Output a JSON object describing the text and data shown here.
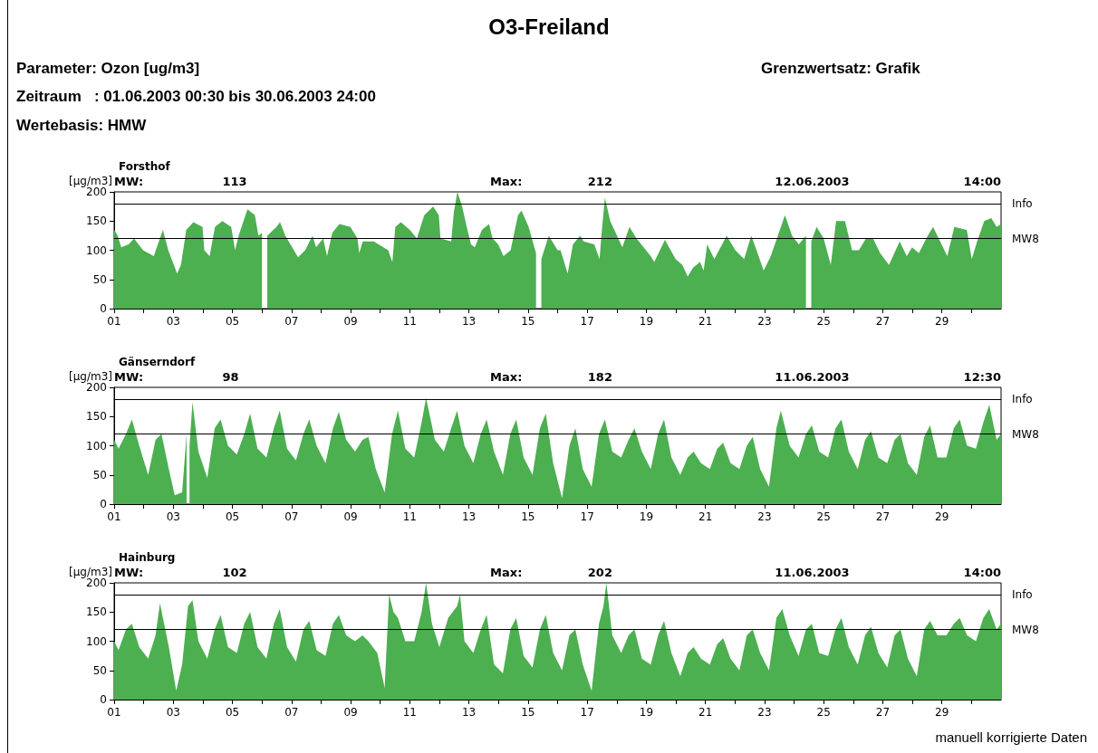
{
  "chart_data": [
    {
      "type": "other",
      "title": "O3-Freiland",
      "annotations": [
        "Parameter: Ozon [ug/m3]",
        "Zeitraum   : 01.06.2003 00:30 bis 30.06.2003 24:00",
        "Wertebasis: HMW",
        "Grenzwertsatz: Grafik",
        "manuell korrigierte Daten"
      ]
    },
    {
      "type": "area",
      "title": "Forsthof",
      "ylabel": "[µg/m3]",
      "annotations": [
        "MW:",
        "113",
        "Max:",
        "212",
        "12.06.2003",
        "14:00"
      ],
      "xlim": [
        1,
        31
      ],
      "ylim": [
        0,
        200
      ],
      "yticks": [
        0,
        50,
        100,
        150,
        200
      ],
      "xticks": [
        {
          "value": 1,
          "label": "01"
        },
        {
          "value": 2,
          "label": null
        },
        {
          "value": 3,
          "label": "03"
        },
        {
          "value": 4,
          "label": null
        },
        {
          "value": 5,
          "label": "05"
        },
        {
          "value": 6,
          "label": null
        },
        {
          "value": 7,
          "label": "07"
        },
        {
          "value": 8,
          "label": null
        },
        {
          "value": 9,
          "label": "09"
        },
        {
          "value": 10,
          "label": null
        },
        {
          "value": 11,
          "label": "11"
        },
        {
          "value": 12,
          "label": null
        },
        {
          "value": 13,
          "label": "13"
        },
        {
          "value": 14,
          "label": null
        },
        {
          "value": 15,
          "label": "15"
        },
        {
          "value": 16,
          "label": null
        },
        {
          "value": 17,
          "label": "17"
        },
        {
          "value": 18,
          "label": null
        },
        {
          "value": 19,
          "label": "19"
        },
        {
          "value": 20,
          "label": null
        },
        {
          "value": 21,
          "label": "21"
        },
        {
          "value": 22,
          "label": null
        },
        {
          "value": 23,
          "label": "23"
        },
        {
          "value": 24,
          "label": null
        },
        {
          "value": 25,
          "label": "25"
        },
        {
          "value": 26,
          "label": null
        },
        {
          "value": 27,
          "label": "27"
        },
        {
          "value": 28,
          "label": null
        },
        {
          "value": 29,
          "label": "29"
        },
        {
          "value": 30,
          "label": null
        }
      ],
      "ref_lines": [
        {
          "axis": "y",
          "value": 180,
          "label": "Info",
          "color": "#000000"
        },
        {
          "axis": "y",
          "value": 120,
          "label": "MW8",
          "color": "#000000"
        }
      ],
      "x": [
        1.0,
        1.12,
        1.24,
        1.49,
        1.67,
        1.98,
        2.34,
        2.65,
        2.83,
        3.13,
        3.26,
        3.44,
        3.68,
        3.99,
        4.05,
        4.23,
        4.41,
        4.66,
        4.96,
        5.09,
        5.21,
        5.51,
        5.76,
        5.88,
        6.0,
        6.12,
        6.18,
        6.49,
        6.61,
        6.79,
        7.22,
        7.46,
        7.71,
        7.83,
        8.07,
        8.2,
        8.38,
        8.62,
        8.99,
        9.23,
        9.29,
        9.41,
        9.78,
        10.27,
        10.41,
        10.51,
        10.7,
        11.0,
        11.24,
        11.49,
        11.79,
        11.98,
        12.04,
        12.4,
        12.49,
        12.61,
        12.77,
        12.95,
        13.07,
        13.2,
        13.44,
        13.68,
        13.8,
        13.99,
        14.17,
        14.41,
        14.66,
        14.78,
        15.02,
        15.27,
        15.37,
        15.45,
        15.7,
        16.0,
        16.1,
        16.34,
        16.52,
        16.76,
        16.88,
        17.24,
        17.42,
        17.48,
        17.6,
        17.78,
        18.01,
        18.19,
        18.43,
        18.67,
        19.15,
        19.27,
        19.63,
        19.99,
        20.22,
        20.4,
        20.58,
        20.82,
        20.94,
        21.06,
        21.3,
        21.72,
        22.01,
        22.31,
        22.55,
        22.73,
        22.97,
        23.21,
        23.69,
        23.93,
        24.16,
        24.4,
        24.5,
        24.58,
        24.76,
        25.0,
        25.24,
        25.42,
        25.72,
        25.96,
        26.19,
        26.43,
        26.67,
        26.91,
        27.21,
        27.57,
        27.81,
        27.99,
        28.22,
        28.52,
        28.7,
        28.94,
        29.18,
        29.42,
        29.84,
        30.01,
        30.19,
        30.43,
        30.67,
        30.85,
        31.0
      ],
      "series": [
        {
          "type": "area",
          "color": "#4caf50",
          "values": [
            135,
            125,
            105,
            110,
            120,
            100,
            90,
            135,
            100,
            60,
            75,
            135,
            148,
            140,
            100,
            90,
            140,
            150,
            140,
            100,
            125,
            170,
            160,
            125,
            130,
            null,
            125,
            140,
            148,
            125,
            88,
            100,
            125,
            105,
            120,
            90,
            130,
            145,
            140,
            120,
            95,
            115,
            115,
            100,
            80,
            140,
            148,
            135,
            120,
            160,
            175,
            160,
            120,
            115,
            165,
            200,
            175,
            135,
            110,
            105,
            135,
            145,
            120,
            110,
            90,
            100,
            160,
            168,
            140,
            95,
            null,
            85,
            125,
            100,
            100,
            60,
            110,
            125,
            115,
            110,
            85,
            125,
            190,
            150,
            125,
            105,
            140,
            120,
            90,
            80,
            118,
            85,
            75,
            55,
            70,
            80,
            65,
            110,
            85,
            125,
            100,
            85,
            125,
            100,
            65,
            90,
            160,
            125,
            110,
            125,
            null,
            115,
            140,
            120,
            75,
            150,
            150,
            100,
            100,
            120,
            120,
            95,
            75,
            115,
            90,
            105,
            95,
            125,
            140,
            115,
            90,
            140,
            135,
            85,
            115,
            150,
            155,
            140,
            145
          ]
        }
      ]
    },
    {
      "type": "area",
      "title": "Gänserndorf",
      "ylabel": "[µg/m3]",
      "annotations": [
        "MW:",
        "98",
        "Max:",
        "182",
        "11.06.2003",
        "12:30"
      ],
      "xlim": [
        1,
        31
      ],
      "ylim": [
        0,
        200
      ],
      "yticks": [
        0,
        50,
        100,
        150,
        200
      ],
      "xticks": [
        {
          "value": 1,
          "label": "01"
        },
        {
          "value": 2,
          "label": null
        },
        {
          "value": 3,
          "label": "03"
        },
        {
          "value": 4,
          "label": null
        },
        {
          "value": 5,
          "label": "05"
        },
        {
          "value": 6,
          "label": null
        },
        {
          "value": 7,
          "label": "07"
        },
        {
          "value": 8,
          "label": null
        },
        {
          "value": 9,
          "label": "09"
        },
        {
          "value": 10,
          "label": null
        },
        {
          "value": 11,
          "label": "11"
        },
        {
          "value": 12,
          "label": null
        },
        {
          "value": 13,
          "label": "13"
        },
        {
          "value": 14,
          "label": null
        },
        {
          "value": 15,
          "label": "15"
        },
        {
          "value": 16,
          "label": null
        },
        {
          "value": 17,
          "label": "17"
        },
        {
          "value": 18,
          "label": null
        },
        {
          "value": 19,
          "label": "19"
        },
        {
          "value": 20,
          "label": null
        },
        {
          "value": 21,
          "label": "21"
        },
        {
          "value": 22,
          "label": null
        },
        {
          "value": 23,
          "label": "23"
        },
        {
          "value": 24,
          "label": null
        },
        {
          "value": 25,
          "label": "25"
        },
        {
          "value": 26,
          "label": null
        },
        {
          "value": 27,
          "label": "27"
        },
        {
          "value": 28,
          "label": null
        },
        {
          "value": 29,
          "label": "29"
        },
        {
          "value": 30,
          "label": null
        }
      ],
      "ref_lines": [
        {
          "axis": "y",
          "value": 180,
          "label": "Info",
          "color": "#000000"
        },
        {
          "axis": "y",
          "value": 120,
          "label": "MW8",
          "color": "#000000"
        }
      ],
      "x": [
        1.0,
        1.15,
        1.4,
        1.6,
        1.85,
        2.15,
        2.4,
        2.6,
        2.85,
        3.05,
        3.3,
        3.45,
        3.5,
        3.55,
        3.65,
        3.85,
        4.15,
        4.4,
        4.6,
        4.85,
        5.15,
        5.4,
        5.6,
        5.85,
        6.15,
        6.4,
        6.6,
        6.85,
        7.15,
        7.4,
        7.6,
        7.85,
        8.15,
        8.4,
        8.6,
        8.85,
        9.15,
        9.4,
        9.6,
        9.85,
        10.15,
        10.4,
        10.6,
        10.85,
        11.15,
        11.4,
        11.55,
        11.85,
        12.15,
        12.4,
        12.6,
        12.85,
        13.15,
        13.4,
        13.6,
        13.85,
        14.15,
        14.4,
        14.6,
        14.85,
        15.15,
        15.4,
        15.6,
        15.85,
        16.15,
        16.4,
        16.6,
        16.85,
        17.15,
        17.4,
        17.6,
        17.85,
        18.15,
        18.4,
        18.6,
        18.85,
        19.15,
        19.4,
        19.6,
        19.85,
        20.15,
        20.4,
        20.6,
        20.85,
        21.15,
        21.4,
        21.6,
        21.85,
        22.15,
        22.4,
        22.6,
        22.85,
        23.15,
        23.4,
        23.55,
        23.85,
        24.15,
        24.4,
        24.6,
        24.85,
        25.15,
        25.4,
        25.6,
        25.85,
        26.15,
        26.4,
        26.6,
        26.85,
        27.15,
        27.4,
        27.6,
        27.85,
        28.15,
        28.4,
        28.6,
        28.85,
        29.15,
        29.4,
        29.6,
        29.85,
        30.15,
        30.4,
        30.6,
        30.85,
        31.0
      ],
      "series": [
        {
          "type": "area",
          "color": "#4caf50",
          "values": [
            110,
            95,
            120,
            145,
            100,
            50,
            110,
            120,
            60,
            15,
            20,
            120,
            null,
            100,
            175,
            90,
            45,
            130,
            145,
            100,
            85,
            120,
            155,
            95,
            80,
            130,
            160,
            95,
            75,
            120,
            145,
            100,
            70,
            130,
            158,
            110,
            90,
            110,
            115,
            60,
            20,
            120,
            160,
            95,
            80,
            140,
            182,
            110,
            90,
            130,
            160,
            100,
            70,
            120,
            145,
            90,
            50,
            120,
            145,
            80,
            50,
            130,
            155,
            70,
            10,
            100,
            130,
            60,
            30,
            120,
            145,
            90,
            80,
            110,
            130,
            90,
            60,
            120,
            145,
            80,
            50,
            80,
            90,
            70,
            60,
            95,
            105,
            70,
            60,
            100,
            115,
            60,
            30,
            130,
            160,
            100,
            80,
            120,
            135,
            90,
            80,
            130,
            145,
            90,
            60,
            110,
            125,
            80,
            70,
            110,
            120,
            70,
            50,
            115,
            135,
            80,
            80,
            130,
            145,
            100,
            95,
            140,
            170,
            110,
            120
          ]
        }
      ]
    },
    {
      "type": "area",
      "title": "Hainburg",
      "ylabel": "[µg/m3]",
      "annotations": [
        "MW:",
        "102",
        "Max:",
        "202",
        "11.06.2003",
        "14:00"
      ],
      "xlim": [
        1,
        31
      ],
      "ylim": [
        0,
        200
      ],
      "yticks": [
        0,
        50,
        100,
        150,
        200
      ],
      "xticks": [
        {
          "value": 1,
          "label": "01"
        },
        {
          "value": 2,
          "label": null
        },
        {
          "value": 3,
          "label": "03"
        },
        {
          "value": 4,
          "label": null
        },
        {
          "value": 5,
          "label": "05"
        },
        {
          "value": 6,
          "label": null
        },
        {
          "value": 7,
          "label": "07"
        },
        {
          "value": 8,
          "label": null
        },
        {
          "value": 9,
          "label": "09"
        },
        {
          "value": 10,
          "label": null
        },
        {
          "value": 11,
          "label": "11"
        },
        {
          "value": 12,
          "label": null
        },
        {
          "value": 13,
          "label": "13"
        },
        {
          "value": 14,
          "label": null
        },
        {
          "value": 15,
          "label": "15"
        },
        {
          "value": 16,
          "label": null
        },
        {
          "value": 17,
          "label": "17"
        },
        {
          "value": 18,
          "label": null
        },
        {
          "value": 19,
          "label": "19"
        },
        {
          "value": 20,
          "label": null
        },
        {
          "value": 21,
          "label": "21"
        },
        {
          "value": 22,
          "label": null
        },
        {
          "value": 23,
          "label": "23"
        },
        {
          "value": 24,
          "label": null
        },
        {
          "value": 25,
          "label": "25"
        },
        {
          "value": 26,
          "label": null
        },
        {
          "value": 27,
          "label": "27"
        },
        {
          "value": 28,
          "label": null
        },
        {
          "value": 29,
          "label": "29"
        },
        {
          "value": 30,
          "label": null
        }
      ],
      "ref_lines": [
        {
          "axis": "y",
          "value": 180,
          "label": "Info",
          "color": "#000000"
        },
        {
          "axis": "y",
          "value": 120,
          "label": "MW8",
          "color": "#000000"
        }
      ],
      "x": [
        1.0,
        1.15,
        1.4,
        1.6,
        1.85,
        2.15,
        2.4,
        2.55,
        2.85,
        3.1,
        3.3,
        3.5,
        3.65,
        3.85,
        4.15,
        4.4,
        4.6,
        4.85,
        5.15,
        5.4,
        5.6,
        5.85,
        6.15,
        6.4,
        6.6,
        6.85,
        7.15,
        7.4,
        7.6,
        7.85,
        8.15,
        8.4,
        8.6,
        8.85,
        9.15,
        9.4,
        9.6,
        9.9,
        10.15,
        10.3,
        10.45,
        10.6,
        10.85,
        11.15,
        11.4,
        11.55,
        11.75,
        12.0,
        12.3,
        12.6,
        12.7,
        12.85,
        13.15,
        13.4,
        13.6,
        13.85,
        14.15,
        14.4,
        14.6,
        14.85,
        15.15,
        15.4,
        15.6,
        15.85,
        16.15,
        16.4,
        16.6,
        16.85,
        17.15,
        17.4,
        17.55,
        17.65,
        17.85,
        18.15,
        18.4,
        18.6,
        18.85,
        19.15,
        19.4,
        19.6,
        19.85,
        20.15,
        20.4,
        20.6,
        20.85,
        21.15,
        21.4,
        21.6,
        21.85,
        22.15,
        22.4,
        22.6,
        22.85,
        23.15,
        23.4,
        23.6,
        23.85,
        24.15,
        24.4,
        24.6,
        24.85,
        25.15,
        25.4,
        25.6,
        25.85,
        26.15,
        26.4,
        26.6,
        26.85,
        27.15,
        27.4,
        27.6,
        27.85,
        28.15,
        28.4,
        28.6,
        28.85,
        29.15,
        29.4,
        29.6,
        29.85,
        30.15,
        30.4,
        30.6,
        30.85,
        31.0
      ],
      "series": [
        {
          "type": "area",
          "color": "#4caf50",
          "values": [
            100,
            85,
            120,
            130,
            90,
            70,
            110,
            165,
            90,
            15,
            60,
            160,
            170,
            100,
            70,
            120,
            145,
            90,
            80,
            130,
            150,
            90,
            70,
            130,
            155,
            90,
            65,
            120,
            135,
            85,
            75,
            130,
            145,
            110,
            100,
            110,
            100,
            80,
            20,
            180,
            150,
            140,
            100,
            100,
            150,
            200,
            130,
            90,
            140,
            160,
            180,
            100,
            80,
            120,
            145,
            60,
            45,
            120,
            140,
            75,
            55,
            120,
            145,
            80,
            50,
            110,
            120,
            60,
            15,
            130,
            160,
            200,
            110,
            80,
            110,
            120,
            70,
            60,
            110,
            135,
            80,
            40,
            80,
            90,
            70,
            60,
            95,
            105,
            70,
            50,
            110,
            120,
            80,
            50,
            140,
            155,
            110,
            75,
            120,
            130,
            80,
            75,
            120,
            140,
            90,
            60,
            110,
            125,
            80,
            55,
            110,
            120,
            70,
            40,
            120,
            135,
            110,
            110,
            130,
            140,
            110,
            100,
            140,
            155,
            120,
            130
          ]
        }
      ]
    }
  ]
}
